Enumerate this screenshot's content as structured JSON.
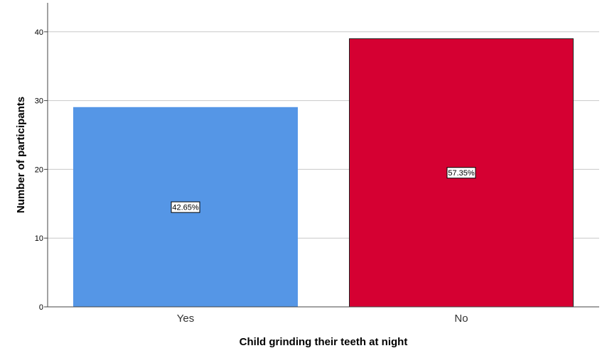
{
  "chart_data": {
    "type": "bar",
    "categories": [
      "Yes",
      "No"
    ],
    "values": [
      29,
      39
    ],
    "data_labels": [
      "42.65%",
      "57.35%"
    ],
    "colors": [
      "#5596E6",
      "#D50032"
    ],
    "xlabel": "Child grinding their teeth at night",
    "ylabel": "Number of participants",
    "ylim": [
      0,
      45
    ],
    "yticks": [
      0,
      10,
      20,
      30,
      40
    ],
    "grid": true
  }
}
